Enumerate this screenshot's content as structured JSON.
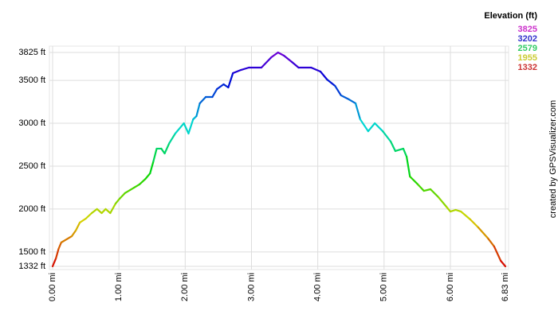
{
  "chart_data": {
    "type": "line",
    "legend": {
      "title": "Elevation (ft)",
      "entries": [
        {
          "value": 3825,
          "color": "#cc33cc"
        },
        {
          "value": 3202,
          "color": "#3333cc"
        },
        {
          "value": 2579,
          "color": "#33cc66"
        },
        {
          "value": 1955,
          "color": "#cccc33"
        },
        {
          "value": 1332,
          "color": "#cc3333"
        }
      ]
    },
    "credit": "created by GPSVisualizer.com",
    "line_hue": [
      0,
      272
    ],
    "xlim": [
      0,
      6.83
    ],
    "xticks": [
      {
        "value": 0,
        "label": "0.00 mi"
      },
      {
        "value": 1,
        "label": "1.00 mi"
      },
      {
        "value": 2,
        "label": "2.00 mi"
      },
      {
        "value": 3,
        "label": "3.00 mi"
      },
      {
        "value": 4,
        "label": "4.00 mi"
      },
      {
        "value": 5,
        "label": "5.00 mi"
      },
      {
        "value": 6,
        "label": "6.00 mi"
      },
      {
        "value": 6.83,
        "label": "6.83 mi"
      }
    ],
    "ylim": [
      1332,
      3825
    ],
    "yticks": [
      {
        "value": 1332,
        "label": "1332 ft"
      },
      {
        "value": 1500,
        "label": "1500 ft"
      },
      {
        "value": 2000,
        "label": "2000 ft"
      },
      {
        "value": 2500,
        "label": "2500 ft"
      },
      {
        "value": 3000,
        "label": "3000 ft"
      },
      {
        "value": 3500,
        "label": "3500 ft"
      },
      {
        "value": 3825,
        "label": "3825 ft"
      }
    ],
    "grid": true,
    "x": [
      0,
      0.05,
      0.09,
      0.13,
      0.29,
      0.35,
      0.41,
      0.5,
      0.59,
      0.67,
      0.74,
      0.8,
      0.87,
      0.95,
      1.01,
      1.09,
      1.17,
      1.23,
      1.31,
      1.4,
      1.47,
      1.52,
      1.57,
      1.64,
      1.69,
      1.76,
      1.85,
      1.98,
      2.05,
      2.12,
      2.17,
      2.22,
      2.31,
      2.41,
      2.48,
      2.58,
      2.65,
      2.72,
      2.84,
      2.96,
      3.15,
      3.3,
      3.4,
      3.49,
      3.61,
      3.71,
      3.9,
      4.04,
      4.14,
      4.26,
      4.35,
      4.47,
      4.57,
      4.64,
      4.76,
      4.86,
      4.98,
      5.1,
      5.17,
      5.29,
      5.34,
      5.39,
      5.51,
      5.6,
      5.7,
      5.82,
      5.94,
      6.0,
      6.08,
      6.16,
      6.3,
      6.42,
      6.57,
      6.66,
      6.76,
      6.83
    ],
    "series": [
      {
        "name": "Elevation",
        "values": [
          1332,
          1425,
          1536,
          1610,
          1684,
          1750,
          1842,
          1888,
          1953,
          2000,
          1953,
          2000,
          1953,
          2064,
          2120,
          2185,
          2222,
          2250,
          2287,
          2351,
          2416,
          2555,
          2704,
          2704,
          2648,
          2768,
          2880,
          3000,
          2880,
          3046,
          3083,
          3232,
          3306,
          3306,
          3399,
          3454,
          3417,
          3584,
          3621,
          3649,
          3649,
          3769,
          3825,
          3788,
          3714,
          3649,
          3649,
          3603,
          3510,
          3436,
          3325,
          3278,
          3232,
          3046,
          2907,
          3000,
          2907,
          2787,
          2676,
          2704,
          2611,
          2379,
          2287,
          2212,
          2231,
          2138,
          2027,
          1971,
          1990,
          1971,
          1879,
          1786,
          1656,
          1564,
          1397,
          1332
        ]
      }
    ]
  }
}
